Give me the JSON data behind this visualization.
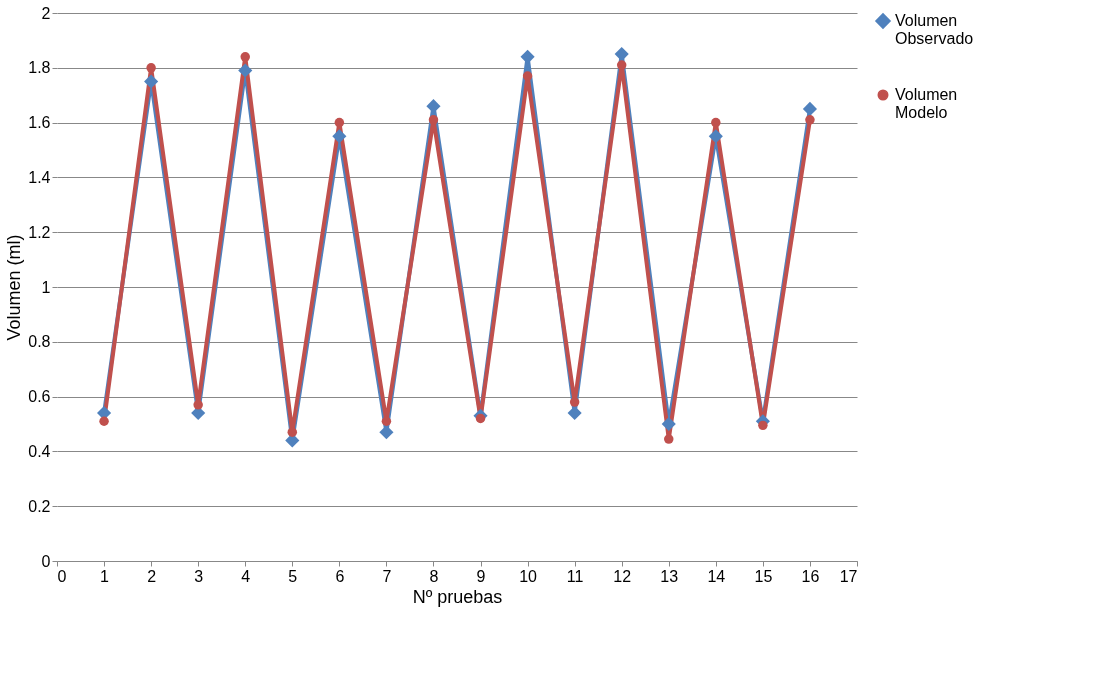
{
  "chart_data": {
    "type": "line",
    "xlabel": "Nº  pruebas",
    "ylabel": "Volumen (ml)",
    "x": [
      1,
      2,
      3,
      4,
      5,
      6,
      7,
      8,
      9,
      10,
      11,
      12,
      13,
      14,
      15,
      16
    ],
    "series": [
      {
        "name": "Volumen Observado",
        "color": "#4f81bd",
        "marker": "diamond",
        "values": [
          0.54,
          1.75,
          0.54,
          1.79,
          0.44,
          1.55,
          0.47,
          1.66,
          0.53,
          1.84,
          0.54,
          1.85,
          0.5,
          1.55,
          0.51,
          1.65
        ]
      },
      {
        "name": "Volumen Modelo",
        "color": "#c0504d",
        "marker": "circle",
        "values": [
          0.51,
          1.8,
          0.57,
          1.84,
          0.47,
          1.6,
          0.51,
          1.61,
          0.52,
          1.77,
          0.58,
          1.81,
          0.445,
          1.6,
          0.495,
          1.61
        ]
      }
    ],
    "xlim": [
      0,
      17
    ],
    "xticks": [
      0,
      1,
      2,
      3,
      4,
      5,
      6,
      7,
      8,
      9,
      10,
      11,
      12,
      13,
      14,
      15,
      16,
      17
    ],
    "ylim": [
      0,
      2
    ],
    "yticks": [
      0,
      0.2,
      0.4,
      0.6,
      0.8,
      1,
      1.2,
      1.4,
      1.6,
      1.8,
      2
    ],
    "grid": "y",
    "legend": "right",
    "line_style": "solid"
  }
}
